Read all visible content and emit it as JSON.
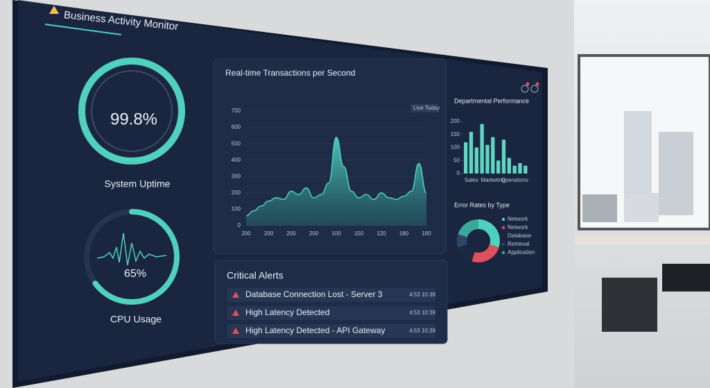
{
  "header": {
    "title": "Business Activity Monitor"
  },
  "uptime": {
    "value": 99.8,
    "value_label": "99.8%",
    "label": "System Uptime"
  },
  "cpu": {
    "value": 65,
    "value_label": "65%",
    "label": "CPU Usage"
  },
  "transactions": {
    "type": "area",
    "title": "Real-time Transactions per Second",
    "legend": "Live Today",
    "color": "#4fd1bd",
    "categories": [
      "200",
      null,
      null,
      "200",
      null,
      null,
      "200",
      null,
      null,
      "200",
      null,
      null,
      "100",
      null,
      null,
      "150",
      null,
      null,
      "120",
      null,
      null,
      "180",
      null,
      null,
      "180"
    ],
    "values": [
      60,
      90,
      120,
      150,
      170,
      160,
      210,
      190,
      230,
      170,
      190,
      260,
      540,
      360,
      210,
      170,
      190,
      160,
      200,
      170,
      160,
      180,
      210,
      380,
      200
    ],
    "ylim": [
      0,
      700
    ],
    "yticks": [
      0,
      100,
      200,
      300,
      400,
      500,
      600,
      700
    ]
  },
  "departments": {
    "type": "bar",
    "title": "Departmental Performance",
    "color": "#5fd6c2",
    "categories": [
      null,
      "Sales",
      null,
      null,
      null,
      "Marketing",
      null,
      null,
      null,
      "Operations",
      null,
      null
    ],
    "values": [
      120,
      160,
      100,
      190,
      110,
      140,
      50,
      130,
      60,
      30,
      40,
      30
    ],
    "ylim": [
      0,
      200
    ],
    "yticks": [
      0,
      50,
      100,
      150,
      200
    ]
  },
  "errors": {
    "type": "pie",
    "title": "Error Rates by Type",
    "categories": [
      "Network",
      "Network",
      "Database",
      "Retrieval",
      "Application"
    ],
    "values": [
      30,
      25,
      15,
      10,
      20
    ],
    "colors": [
      "#4fd1bd",
      "#e0505c",
      "#1b2842",
      "#2f4566",
      "#3aa896"
    ]
  },
  "alerts": {
    "title": "Critical Alerts",
    "items": [
      {
        "text": "Database Connection Lost - Server 3",
        "time": "4:53 10:39"
      },
      {
        "text": "High Latency Detected",
        "time": "4:53 10:39"
      },
      {
        "text": "High Latency Detected - API Gateway",
        "time": "4:53 10:39"
      }
    ]
  }
}
